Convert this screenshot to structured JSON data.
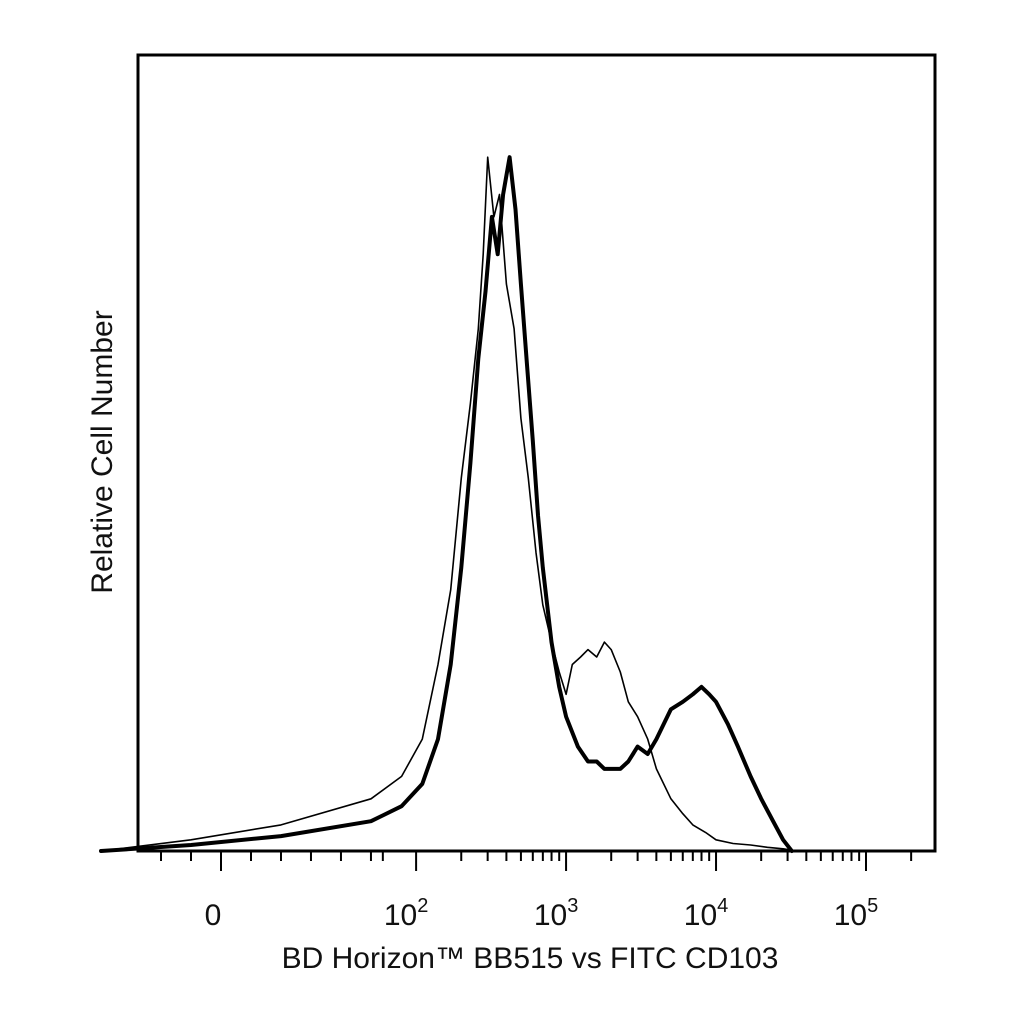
{
  "chart_data": {
    "type": "line",
    "xlabel": "BD Horizon™ BB515  vs FITC CD103",
    "ylabel": "Relative Cell Number",
    "x_scale": "biexponential",
    "xlim": [
      -60,
      250000
    ],
    "ylim": [
      0,
      100
    ],
    "grid": false,
    "legend": "none",
    "x_ticks": [
      {
        "value": 0,
        "label": "0"
      },
      {
        "value": 100,
        "base": "10",
        "exp": "2"
      },
      {
        "value": 1000,
        "base": "10",
        "exp": "3"
      },
      {
        "value": 10000,
        "base": "10",
        "exp": "4"
      },
      {
        "value": 100000,
        "base": "10",
        "exp": "5"
      }
    ],
    "series": [
      {
        "style": "thin",
        "x": [
          -40,
          -10,
          20,
          50,
          80,
          110,
          140,
          170,
          200,
          230,
          260,
          280,
          300,
          330,
          360,
          400,
          450,
          500,
          560,
          630,
          700,
          800,
          900,
          1000,
          1100,
          1250,
          1400,
          1600,
          1800,
          2000,
          2300,
          2600,
          3000,
          3500,
          4000,
          5000,
          6000,
          7000,
          8500,
          10000,
          13000,
          17000,
          22000,
          28000,
          35000
        ],
        "y": [
          0,
          1.5,
          3.5,
          7,
          10,
          15,
          25,
          35,
          50,
          60,
          70,
          80,
          93,
          85,
          88,
          76,
          70,
          58,
          50,
          40,
          33,
          28,
          24,
          21,
          25,
          26,
          27,
          26,
          28,
          27,
          24,
          20,
          18,
          15,
          11,
          7,
          5,
          3.5,
          2.5,
          1.5,
          1,
          0.8,
          0.5,
          0.3,
          0
        ]
      },
      {
        "style": "thick",
        "x": [
          -40,
          -10,
          20,
          50,
          80,
          110,
          140,
          170,
          200,
          230,
          260,
          290,
          320,
          350,
          380,
          420,
          460,
          500,
          550,
          600,
          650,
          700,
          800,
          900,
          1000,
          1200,
          1400,
          1600,
          1800,
          2000,
          2300,
          2600,
          3000,
          3500,
          4000,
          5000,
          6000,
          7000,
          8000,
          9000,
          10000,
          12000,
          14000,
          17000,
          20000,
          24000,
          28000,
          32000
        ],
        "y": [
          0,
          0.8,
          2,
          4,
          6,
          9,
          15,
          25,
          38,
          52,
          66,
          75,
          85,
          80,
          88,
          93,
          86,
          76,
          65,
          55,
          45,
          38,
          28,
          22,
          18,
          14,
          12,
          12,
          11,
          11,
          11,
          12,
          14,
          13,
          15,
          19,
          20,
          21,
          22,
          21,
          20,
          17,
          14,
          10,
          7,
          4,
          1.5,
          0
        ]
      }
    ]
  }
}
